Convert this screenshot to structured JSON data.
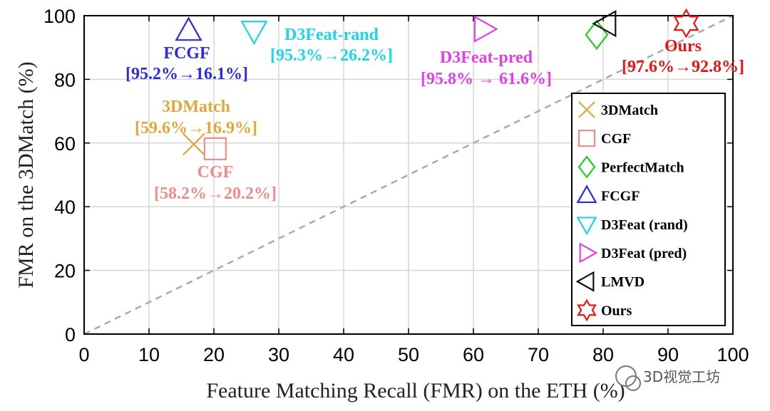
{
  "chart_data": {
    "type": "scatter",
    "title": "",
    "xlabel": "Feature Matching Recall (FMR) on the ETH (%)",
    "ylabel": "FMR on the 3DMatch (%)",
    "xlim": [
      0,
      100
    ],
    "ylim": [
      0,
      100
    ],
    "xticks": [
      0,
      10,
      20,
      30,
      40,
      50,
      60,
      70,
      80,
      90,
      100
    ],
    "yticks": [
      0,
      20,
      40,
      60,
      80,
      100
    ],
    "grid": true,
    "diagonal": true,
    "legend_position": "bottom-right",
    "series": [
      {
        "name": "3DMatch",
        "marker": "x",
        "color": "#e0a83a",
        "x": 16.9,
        "y": 59.6,
        "annotation": {
          "name": "3DMatch",
          "values": "[59.6%→16.9%]"
        }
      },
      {
        "name": "CGF",
        "marker": "square",
        "color": "#f28a8a",
        "x": 20.2,
        "y": 58.2,
        "annotation": {
          "name": "CGF",
          "values": "[58.2%→20.2%]"
        }
      },
      {
        "name": "PerfectMatch",
        "marker": "diamond",
        "color": "#22cc22",
        "x": 79.0,
        "y": 94.0,
        "annotation": null
      },
      {
        "name": "FCGF",
        "marker": "triangle-up",
        "color": "#2a2ae8",
        "x": 16.1,
        "y": 95.2,
        "annotation": {
          "name": "FCGF",
          "values": "[95.2%→16.1%]"
        }
      },
      {
        "name": "D3Feat (rand)",
        "marker": "triangle-down",
        "color": "#1ad6e6",
        "x": 26.2,
        "y": 95.3,
        "annotation": {
          "name": "D3Feat-rand",
          "values": "[95.3%→26.2%]"
        }
      },
      {
        "name": "D3Feat (pred)",
        "marker": "triangle-right",
        "color": "#e63ee6",
        "x": 61.6,
        "y": 95.8,
        "annotation": {
          "name": "D3Feat-pred",
          "values": "[95.8% → 61.6%]"
        }
      },
      {
        "name": "LMVD",
        "marker": "triangle-left",
        "color": "#111111",
        "x": 80.5,
        "y": 97.5,
        "annotation": null
      },
      {
        "name": "Ours",
        "marker": "hexagram",
        "color": "#ee1111",
        "x": 92.8,
        "y": 97.6,
        "annotation": {
          "name": "Ours",
          "values": "[97.6%→92.8%]"
        }
      }
    ]
  },
  "watermark": "3D视觉工坊"
}
